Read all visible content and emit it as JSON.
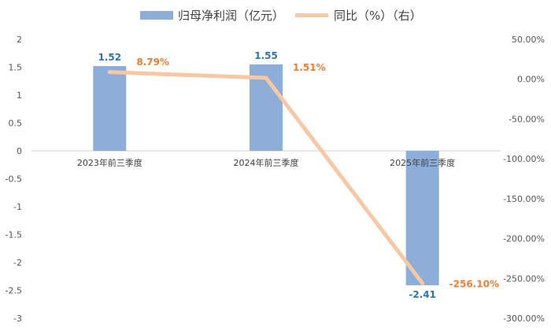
{
  "chart_data": {
    "type": "bar",
    "categories": [
      "2023年前三季度",
      "2024年前三季度",
      "2025年前三季度"
    ],
    "series": [
      {
        "name": "归母净利润（亿元）",
        "type": "bar",
        "axis": "left",
        "values": [
          1.52,
          1.55,
          -2.41
        ],
        "labels": [
          "1.52",
          "1.55",
          "-2.41"
        ],
        "color": "#8caed8"
      },
      {
        "name": "同比（%）（右）",
        "type": "line",
        "axis": "right",
        "values": [
          8.79,
          1.51,
          -256.1
        ],
        "labels": [
          "8.79%",
          "1.51%",
          "-256.10%"
        ],
        "color": "#f8c7a3"
      }
    ],
    "left_axis": {
      "ylim": [
        -3,
        2
      ],
      "ticks": [
        "2",
        "1.5",
        "1",
        "0.5",
        "0",
        "-0.5",
        "-1",
        "-1.5",
        "-2",
        "-2.5",
        "-3"
      ]
    },
    "right_axis": {
      "ylim": [
        -300,
        50
      ],
      "ticks": [
        "50.00%",
        "0.00%",
        "-50.00%",
        "-100.00%",
        "-150.00%",
        "-200.00%",
        "-250.00%",
        "-300.00%"
      ]
    },
    "bar_label_color": "#2e74b5",
    "line_label_color": "#ed7d31",
    "legend_position": "top",
    "grid": false
  }
}
